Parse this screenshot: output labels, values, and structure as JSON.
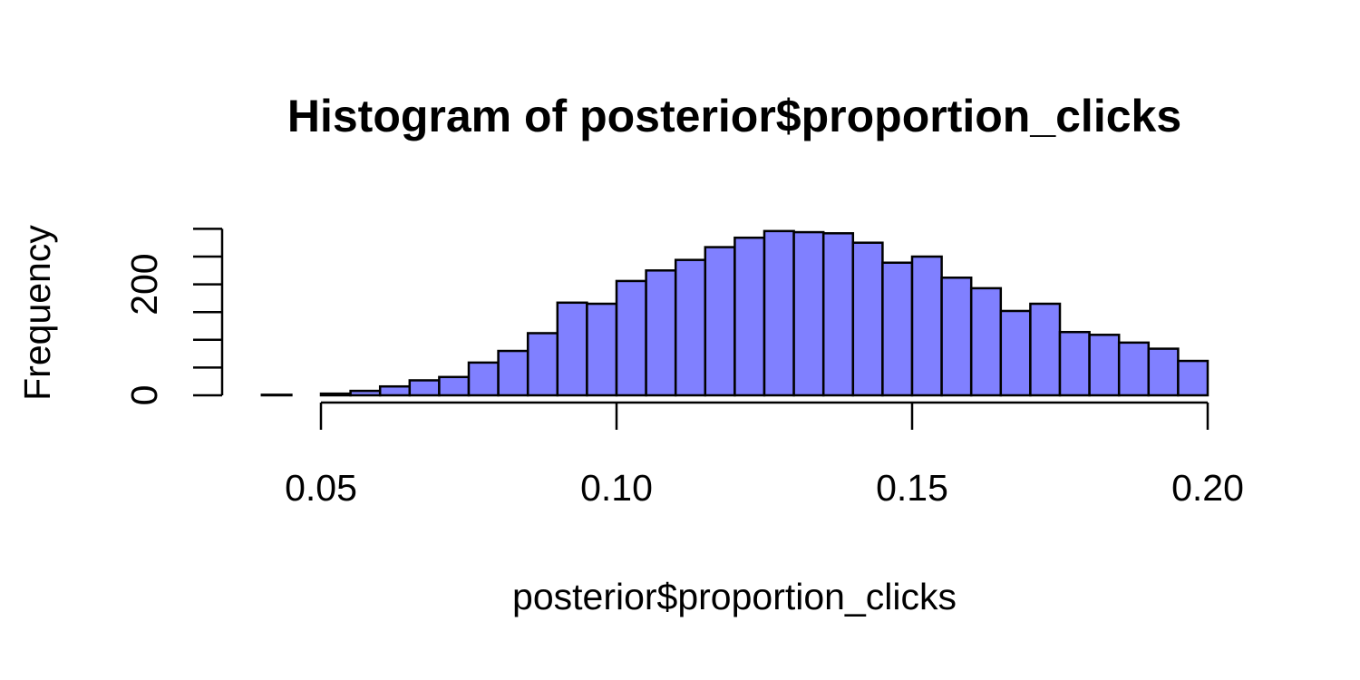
{
  "chart_data": {
    "type": "bar",
    "title": "Histogram of posterior$proportion_clicks",
    "xlabel": "posterior$proportion_clicks",
    "ylabel": "Frequency",
    "bar_color": "#8080ff",
    "bin_width": 0.005,
    "bin_start": 0.04,
    "values": [
      1,
      0,
      3,
      8,
      16,
      27,
      33,
      59,
      80,
      112,
      167,
      165,
      206,
      225,
      244,
      267,
      284,
      296,
      294,
      292,
      275,
      239,
      250,
      212,
      193,
      152,
      165,
      114,
      109,
      95,
      84,
      62
    ],
    "xlim": [
      0.04,
      0.2
    ],
    "ylim": [
      0,
      300
    ],
    "x_ticks": [
      0.05,
      0.1,
      0.15,
      0.2
    ],
    "x_tick_labels": [
      "0.05",
      "0.10",
      "0.15",
      "0.20"
    ],
    "y_ticks": [
      0,
      50,
      100,
      150,
      200,
      250,
      300
    ],
    "y_tick_labels": [
      "0",
      "",
      "",
      "",
      "200",
      "",
      ""
    ],
    "grid": false
  }
}
